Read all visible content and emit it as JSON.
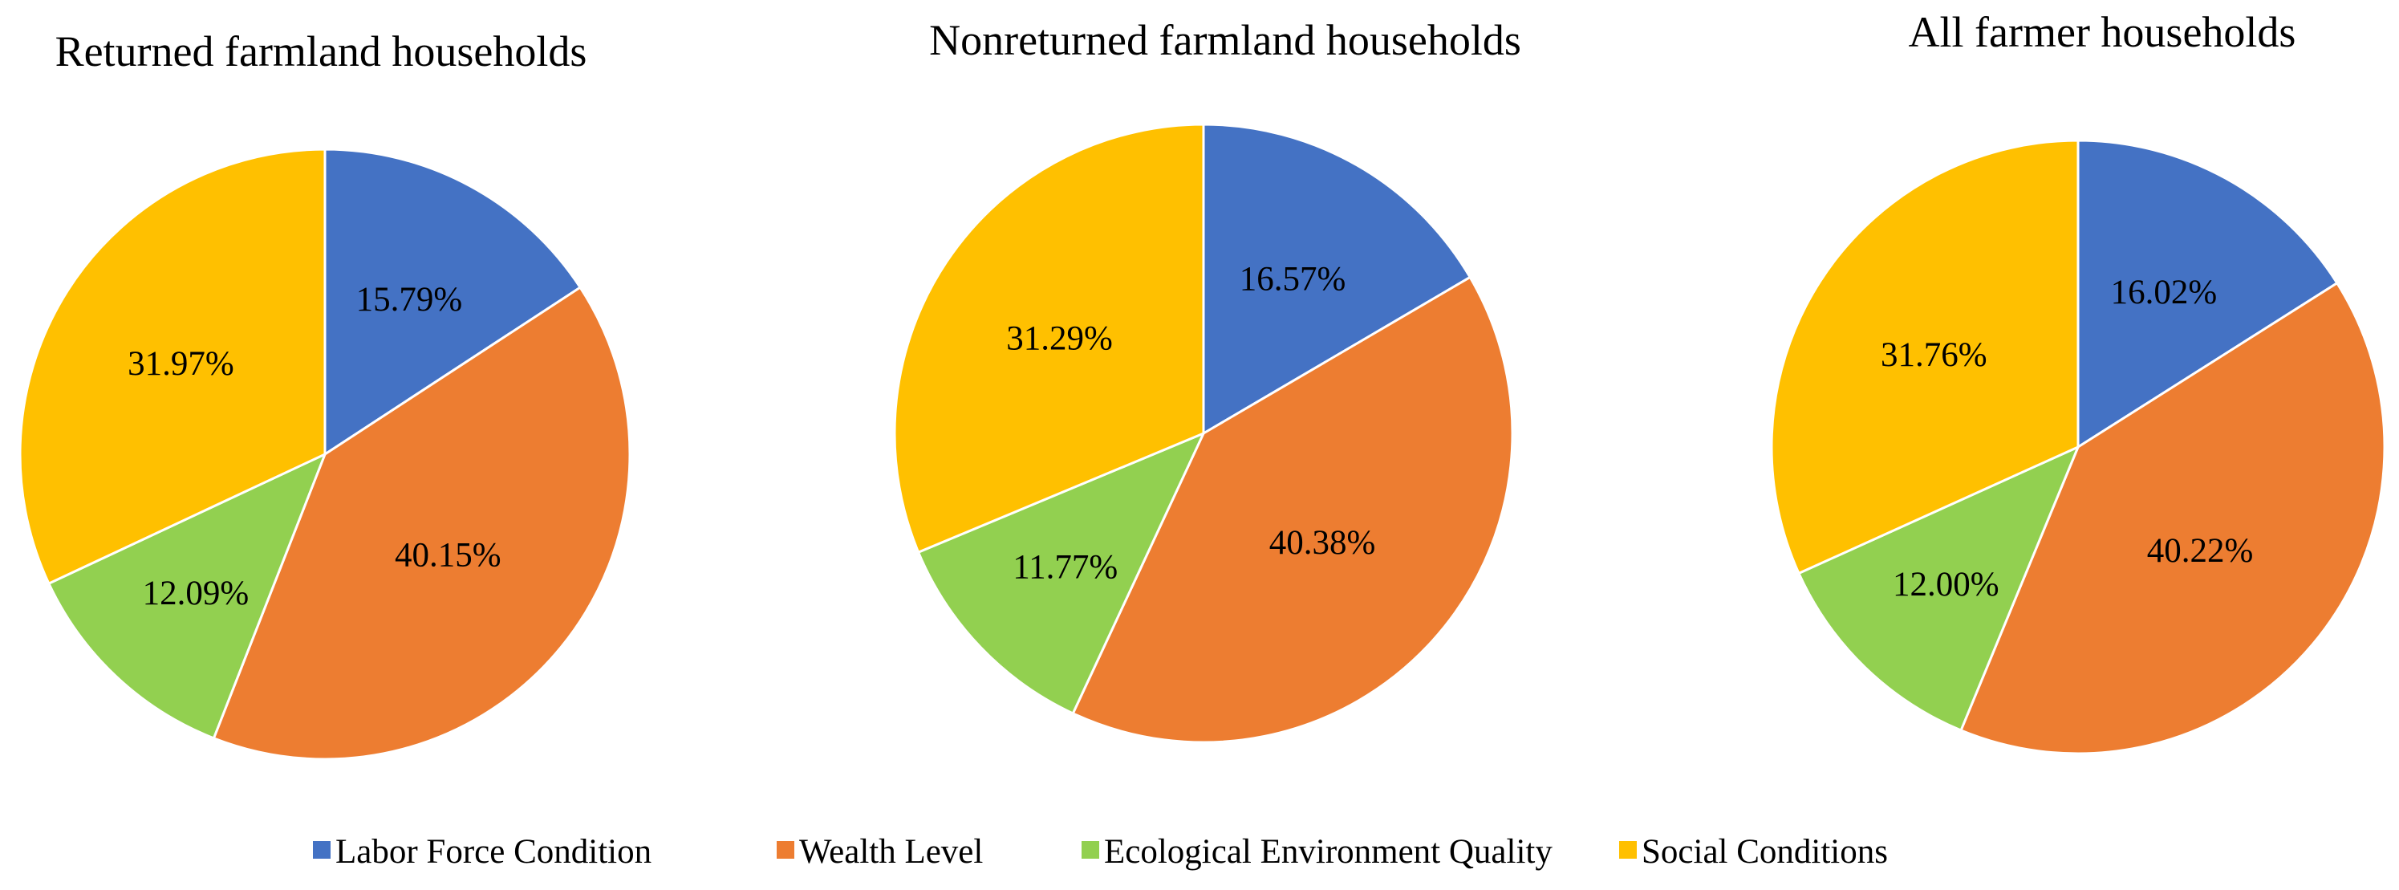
{
  "legend": {
    "items": [
      {
        "label": "Labor Force Condition",
        "color": "#4472C4"
      },
      {
        "label": "Wealth Level",
        "color": "#ED7D31"
      },
      {
        "label": "Ecological Environment Quality",
        "color": "#92D050"
      },
      {
        "label": "Social Conditions",
        "color": "#FFC000"
      }
    ]
  },
  "chart_data": [
    {
      "type": "pie",
      "title": "Returned farmland households",
      "categories": [
        "Labor Force Condition",
        "Wealth Level",
        "Ecological Environment Quality",
        "Social Conditions"
      ],
      "values": [
        15.79,
        40.15,
        12.09,
        31.97
      ],
      "labels": [
        "15.79%",
        "40.15%",
        "12.09%",
        "31.97%"
      ],
      "colors": [
        "#4472C4",
        "#ED7D31",
        "#92D050",
        "#FFC000"
      ]
    },
    {
      "type": "pie",
      "title": "Nonreturned farmland households",
      "categories": [
        "Labor Force Condition",
        "Wealth Level",
        "Ecological Environment Quality",
        "Social Conditions"
      ],
      "values": [
        16.57,
        40.38,
        11.77,
        31.29
      ],
      "labels": [
        "16.57%",
        "40.38%",
        "11.77%",
        "31.29%"
      ],
      "colors": [
        "#4472C4",
        "#ED7D31",
        "#92D050",
        "#FFC000"
      ]
    },
    {
      "type": "pie",
      "title": "All farmer households",
      "categories": [
        "Labor Force Condition",
        "Wealth Level",
        "Ecological Environment Quality",
        "Social Conditions"
      ],
      "values": [
        16.02,
        40.22,
        12.0,
        31.76
      ],
      "labels": [
        "16.02%",
        "40.22%",
        "12.00%",
        "31.76%"
      ],
      "colors": [
        "#4472C4",
        "#ED7D31",
        "#92D050",
        "#FFC000"
      ]
    }
  ]
}
